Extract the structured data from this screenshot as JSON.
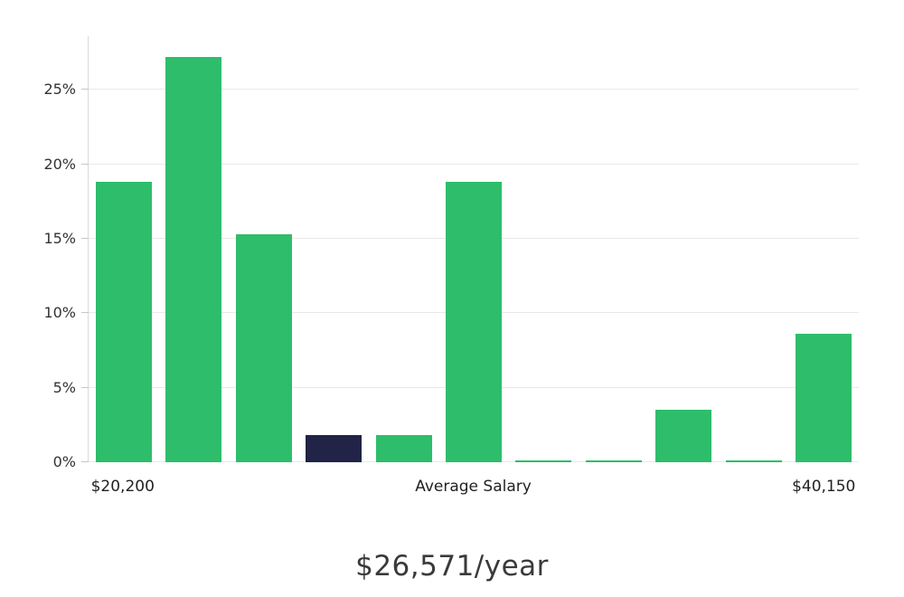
{
  "chart_data": {
    "type": "bar",
    "title": "$26,571/year",
    "xlabel": "",
    "ylabel": "",
    "ylim": [
      0,
      28.6
    ],
    "grid": true,
    "legend": false,
    "bar_color": "#2EBD6B",
    "highlight_color": "#212347",
    "highlight_index": 3,
    "values": [
      18.8,
      27.2,
      15.3,
      1.8,
      1.8,
      18.8,
      0.1,
      0.1,
      3.5,
      0.1,
      8.6
    ],
    "y_ticks": [
      {
        "value": 0,
        "label": "0%"
      },
      {
        "value": 5,
        "label": "5%"
      },
      {
        "value": 10,
        "label": "10%"
      },
      {
        "value": 15,
        "label": "15%"
      },
      {
        "value": 20,
        "label": "20%"
      },
      {
        "value": 25,
        "label": "25%"
      }
    ],
    "x_labels": [
      {
        "text": "$20,200",
        "bar_index": 0
      },
      {
        "text": "Average Salary",
        "bar_index": 5
      },
      {
        "text": "$40,150",
        "bar_index": 10
      }
    ]
  }
}
